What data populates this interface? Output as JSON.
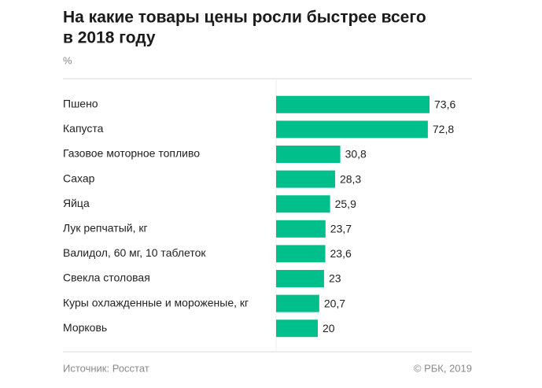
{
  "chart_data": {
    "type": "bar",
    "orientation": "horizontal",
    "title": [
      "На какие товары цены росли быстрее всего",
      "в 2018 году"
    ],
    "subtitle": "%",
    "categories": [
      "Пшено",
      "Капуста",
      "Газовое моторное топливо",
      "Сахар",
      "Яйца",
      "Лук репчатый, кг",
      "Валидол, 60 мг, 10 таблеток",
      "Свекла столовая",
      "Куры охлажденные и мороженые, кг",
      "Морковь"
    ],
    "values": [
      73.6,
      72.8,
      30.8,
      28.3,
      25.9,
      23.7,
      23.6,
      23,
      20.7,
      20
    ],
    "value_labels": [
      "73,6",
      "72,8",
      "30,8",
      "28,3",
      "25,9",
      "23,7",
      "23,6",
      "23",
      "20,7",
      "20"
    ],
    "color": "#00bf8a",
    "source": "Источник: Росстат",
    "credit": "© РБК, 2019"
  }
}
